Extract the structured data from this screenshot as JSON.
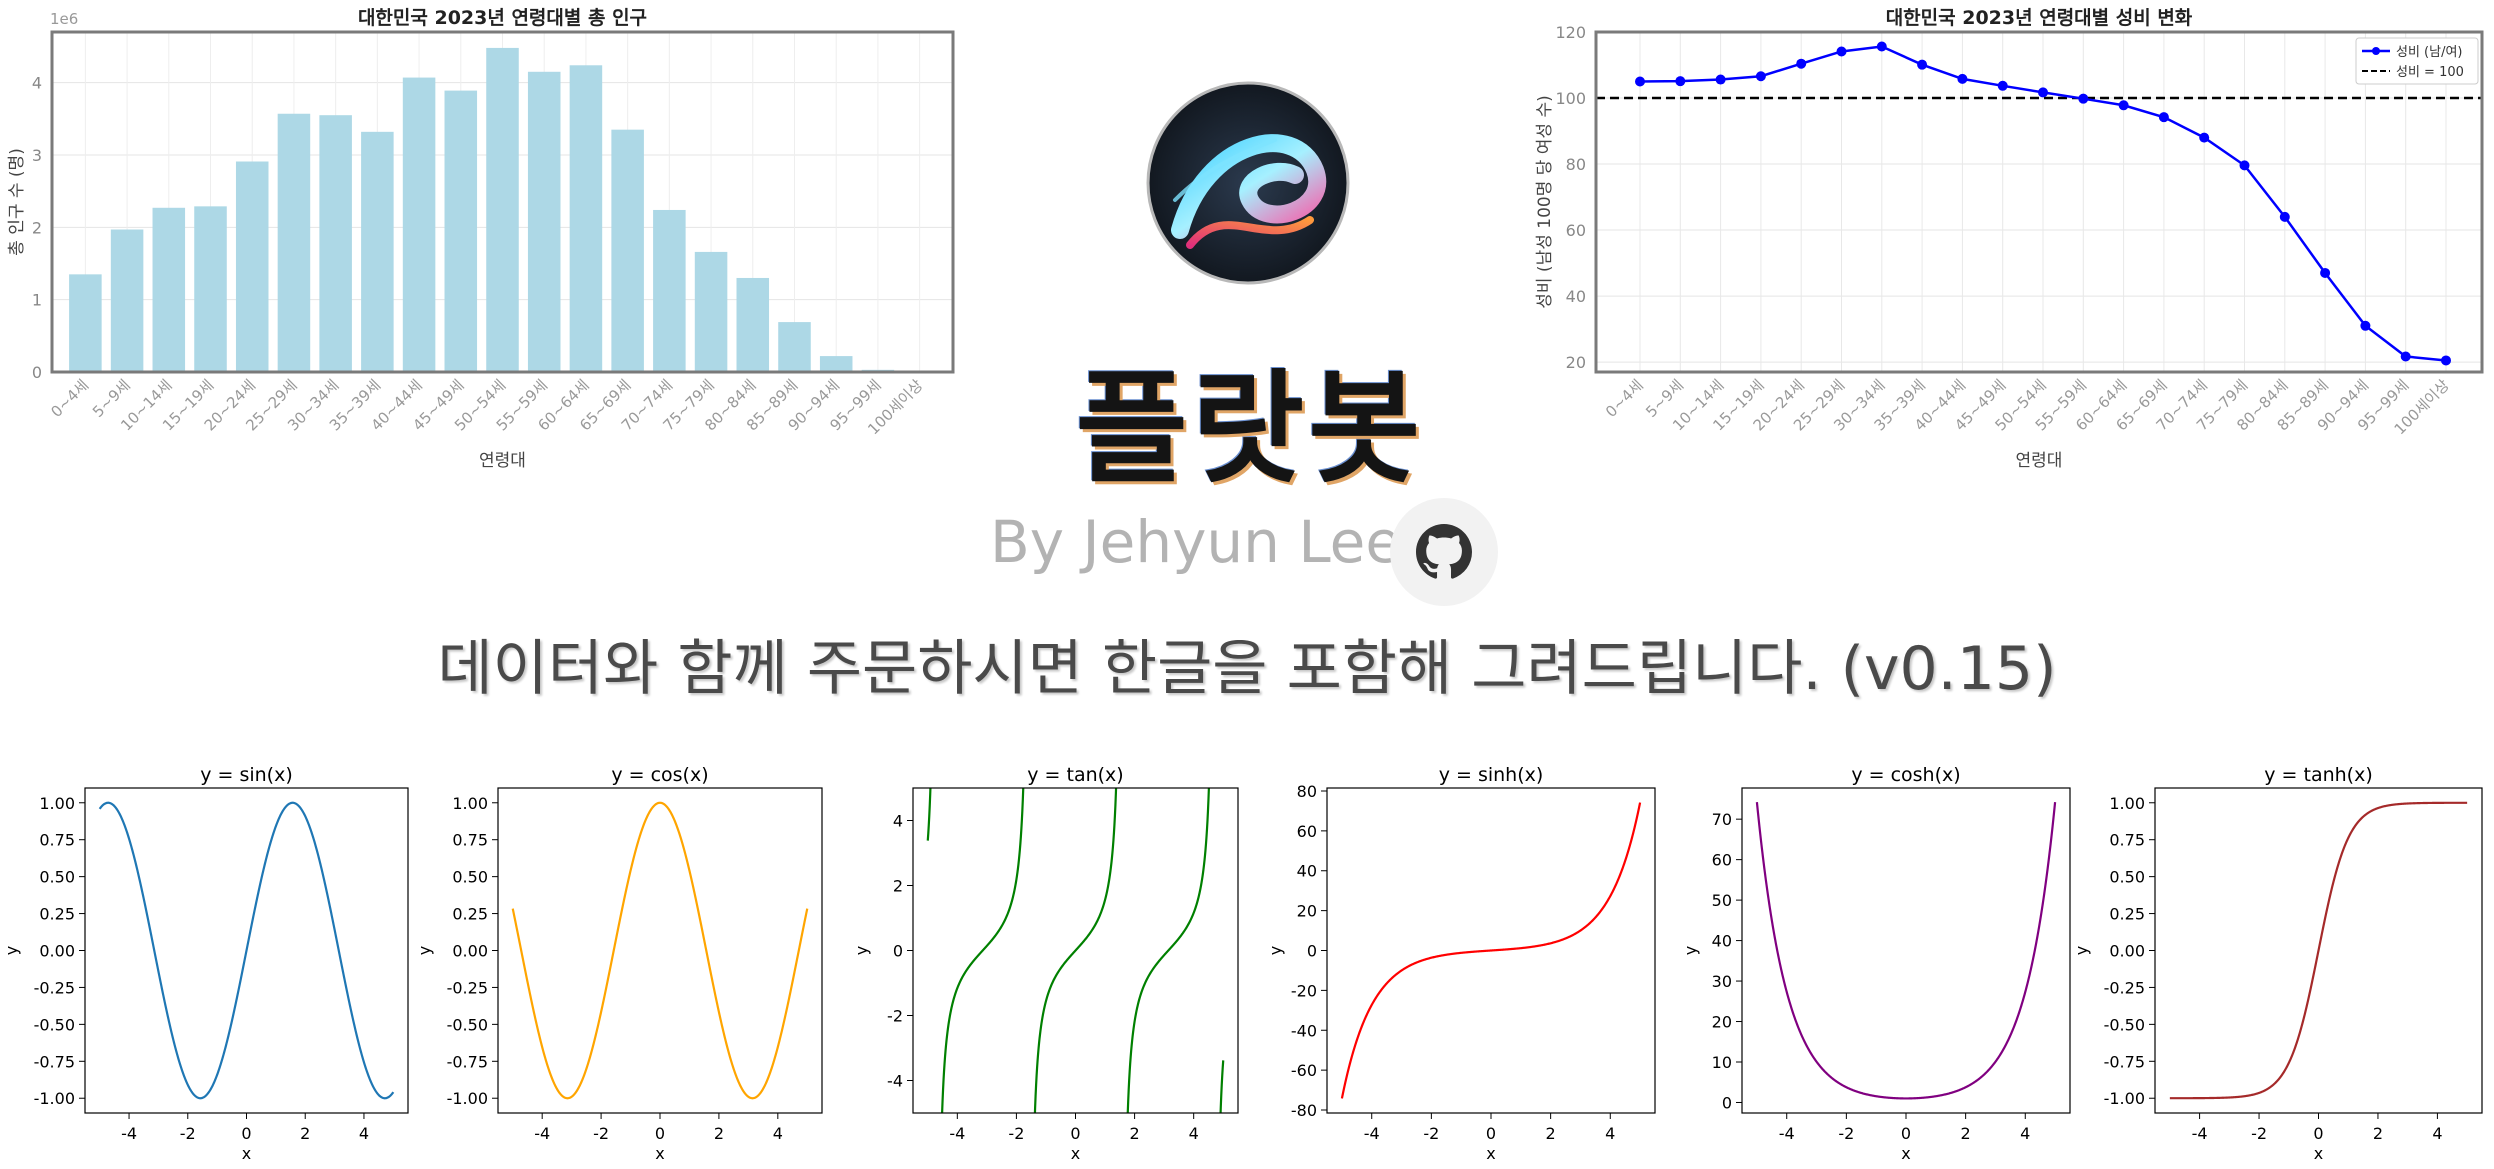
{
  "brand": {
    "name": "플랏봇",
    "byline": "By Jehyun Lee",
    "tagline": "데이터와 함께 주문하시면 한글을 포함해 그려드립니다. (v0.15)",
    "logo_icon": "swirl-logo-icon",
    "github_icon": "github-icon"
  },
  "chart_data": [
    {
      "type": "bar",
      "title": "대한민국 2023년 연령대별 총 인구",
      "xlabel": "연령대",
      "ylabel": "총 인구 수 (명)",
      "offset_label": "1e6",
      "ylim": [
        0,
        4.7
      ],
      "yticks": [
        "0",
        "1",
        "2",
        "3",
        "4"
      ],
      "grid": true,
      "color": "#add8e6",
      "categories": [
        "0~4세",
        "5~9세",
        "10~14세",
        "15~19세",
        "20~24세",
        "25~29세",
        "30~34세",
        "35~39세",
        "40~44세",
        "45~49세",
        "50~54세",
        "55~59세",
        "60~64세",
        "65~69세",
        "70~74세",
        "75~79세",
        "80~84세",
        "85~89세",
        "90~94세",
        "95~99세",
        "100세이상"
      ],
      "values": [
        1.35,
        1.97,
        2.27,
        2.29,
        2.91,
        3.57,
        3.55,
        3.32,
        4.07,
        3.89,
        4.48,
        4.15,
        4.24,
        3.35,
        2.24,
        1.66,
        1.3,
        0.69,
        0.22,
        0.03,
        0.01
      ]
    },
    {
      "type": "line",
      "title": "대한민국 2023년 연령대별 성비 변화",
      "xlabel": "연령대",
      "ylabel": "성비 (남성 100명 당 여성 수)",
      "ylim": [
        17,
        120
      ],
      "yticks": [
        "20",
        "40",
        "60",
        "80",
        "100",
        "120"
      ],
      "grid": true,
      "legend_position": "top-right",
      "series": [
        {
          "name": "성비 (남/여)",
          "color": "#0000ff",
          "values": [
            105.0,
            105.1,
            105.6,
            106.6,
            110.4,
            114.1,
            115.6,
            110.1,
            105.8,
            103.7,
            101.7,
            99.8,
            97.8,
            94.2,
            88.0,
            79.6,
            64.0,
            47.0,
            31.0,
            21.7,
            20.5
          ]
        },
        {
          "name": "성비 = 100",
          "color": "#000000",
          "style": "dashed",
          "constant": 100
        }
      ],
      "categories": [
        "0~4세",
        "5~9세",
        "10~14세",
        "15~19세",
        "20~24세",
        "25~29세",
        "30~34세",
        "35~39세",
        "40~44세",
        "45~49세",
        "50~54세",
        "55~59세",
        "60~64세",
        "65~69세",
        "70~74세",
        "75~79세",
        "80~84세",
        "85~89세",
        "90~94세",
        "95~99세",
        "100세이상"
      ]
    },
    {
      "type": "line",
      "title": "y = sin(x)",
      "xlabel": "x",
      "ylabel": "y",
      "function": "sin",
      "x_range": [
        -5,
        5
      ],
      "color": "#1f77b4",
      "ylim": [
        -1.1,
        1.1
      ],
      "yticks": [
        "-1.00",
        "-0.75",
        "-0.50",
        "-0.25",
        "0.00",
        "0.25",
        "0.50",
        "0.75",
        "1.00"
      ],
      "xticks": [
        "-4",
        "-2",
        "0",
        "2",
        "4"
      ]
    },
    {
      "type": "line",
      "title": "y = cos(x)",
      "xlabel": "x",
      "ylabel": "y",
      "function": "cos",
      "x_range": [
        -5,
        5
      ],
      "color": "#ffa500",
      "ylim": [
        -1.1,
        1.1
      ],
      "yticks": [
        "-1.00",
        "-0.75",
        "-0.50",
        "-0.25",
        "0.00",
        "0.25",
        "0.50",
        "0.75",
        "1.00"
      ],
      "xticks": [
        "-4",
        "-2",
        "0",
        "2",
        "4"
      ]
    },
    {
      "type": "line",
      "title": "y = tan(x)",
      "xlabel": "x",
      "ylabel": "y",
      "function": "tan",
      "x_range": [
        -5,
        5
      ],
      "color": "#008000",
      "ylim": [
        -5,
        5
      ],
      "yticks": [
        "-4",
        "-2",
        "0",
        "2",
        "4"
      ],
      "xticks": [
        "-4",
        "-2",
        "0",
        "2",
        "4"
      ]
    },
    {
      "type": "line",
      "title": "y = sinh(x)",
      "xlabel": "x",
      "ylabel": "y",
      "function": "sinh",
      "x_range": [
        -5,
        5
      ],
      "color": "#ff0000",
      "ylim": [
        -81.5,
        81.5
      ],
      "yticks": [
        "-80",
        "-60",
        "-40",
        "-20",
        "0",
        "20",
        "40",
        "60",
        "80"
      ],
      "xticks": [
        "-4",
        "-2",
        "0",
        "2",
        "4"
      ]
    },
    {
      "type": "line",
      "title": "y = cosh(x)",
      "xlabel": "x",
      "ylabel": "y",
      "function": "cosh",
      "x_range": [
        -5,
        5
      ],
      "color": "#800080",
      "ylim": [
        -2.6,
        77.7
      ],
      "yticks": [
        "0",
        "10",
        "20",
        "30",
        "40",
        "50",
        "60",
        "70"
      ],
      "xticks": [
        "-4",
        "-2",
        "0",
        "2",
        "4"
      ]
    },
    {
      "type": "line",
      "title": "y = tanh(x)",
      "xlabel": "x",
      "ylabel": "y",
      "function": "tanh",
      "x_range": [
        -5,
        5
      ],
      "color": "#a52a2a",
      "ylim": [
        -1.1,
        1.1
      ],
      "yticks": [
        "-1.00",
        "-0.75",
        "-0.50",
        "-0.25",
        "0.00",
        "0.25",
        "0.50",
        "0.75",
        "1.00"
      ],
      "xticks": [
        "-4",
        "-2",
        "0",
        "2",
        "4"
      ]
    }
  ]
}
